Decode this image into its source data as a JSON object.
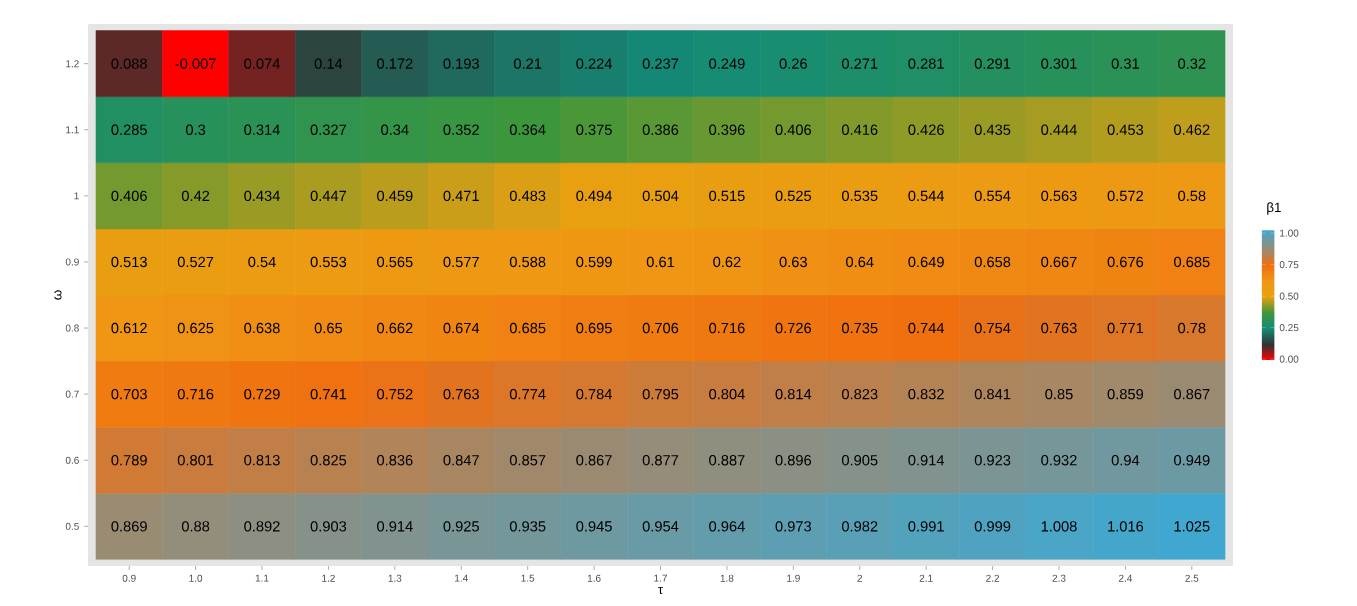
{
  "chart_data": {
    "type": "heatmap",
    "xlabel": "τ",
    "ylabel": "ω",
    "clabel": "β1",
    "categories": [
      "0.9",
      "1.0",
      "1.1",
      "1.2",
      "1.3",
      "1.4",
      "1.5",
      "1.6",
      "1.7",
      "1.8",
      "1.9",
      "2",
      "2.1",
      "2.2",
      "2.3",
      "2.4",
      "2.5"
    ],
    "y_categories": [
      "1.2",
      "1.1",
      "1",
      "0.9",
      "0.8",
      "0.7",
      "0.6",
      "0.5"
    ],
    "cells": [
      [
        0.088,
        -0.007,
        0.074,
        0.14,
        0.172,
        0.193,
        0.21,
        0.224,
        0.237,
        0.249,
        0.26,
        0.271,
        0.281,
        0.291,
        0.301,
        0.31,
        0.32
      ],
      [
        0.285,
        0.3,
        0.314,
        0.327,
        0.34,
        0.352,
        0.364,
        0.375,
        0.386,
        0.396,
        0.406,
        0.416,
        0.426,
        0.435,
        0.444,
        0.453,
        0.462
      ],
      [
        0.406,
        0.42,
        0.434,
        0.447,
        0.459,
        0.471,
        0.483,
        0.494,
        0.504,
        0.515,
        0.525,
        0.535,
        0.544,
        0.554,
        0.563,
        0.572,
        0.58
      ],
      [
        0.513,
        0.527,
        0.54,
        0.553,
        0.565,
        0.577,
        0.588,
        0.599,
        0.61,
        0.62,
        0.63,
        0.64,
        0.649,
        0.658,
        0.667,
        0.676,
        0.685
      ],
      [
        0.612,
        0.625,
        0.638,
        0.65,
        0.662,
        0.674,
        0.685,
        0.695,
        0.706,
        0.716,
        0.726,
        0.735,
        0.744,
        0.754,
        0.763,
        0.771,
        0.78
      ],
      [
        0.703,
        0.716,
        0.729,
        0.741,
        0.752,
        0.763,
        0.774,
        0.784,
        0.795,
        0.804,
        0.814,
        0.823,
        0.832,
        0.841,
        0.85,
        0.859,
        0.867
      ],
      [
        0.789,
        0.801,
        0.813,
        0.825,
        0.836,
        0.847,
        0.857,
        0.867,
        0.877,
        0.887,
        0.896,
        0.905,
        0.914,
        0.923,
        0.932,
        0.94,
        0.949
      ],
      [
        0.869,
        0.88,
        0.892,
        0.903,
        0.914,
        0.925,
        0.935,
        0.945,
        0.954,
        0.964,
        0.973,
        0.982,
        0.991,
        0.999,
        1.008,
        1.016,
        1.025
      ]
    ],
    "clim": [
      -0.007,
      1.025
    ],
    "cticks": [
      {
        "value": 0,
        "label": "0.00"
      },
      {
        "value": 0.25,
        "label": "0.25"
      },
      {
        "value": 0.5,
        "label": "0.50"
      },
      {
        "value": 0.75,
        "label": "0.75"
      },
      {
        "value": 1,
        "label": "1.00"
      }
    ],
    "data_labels": true
  }
}
